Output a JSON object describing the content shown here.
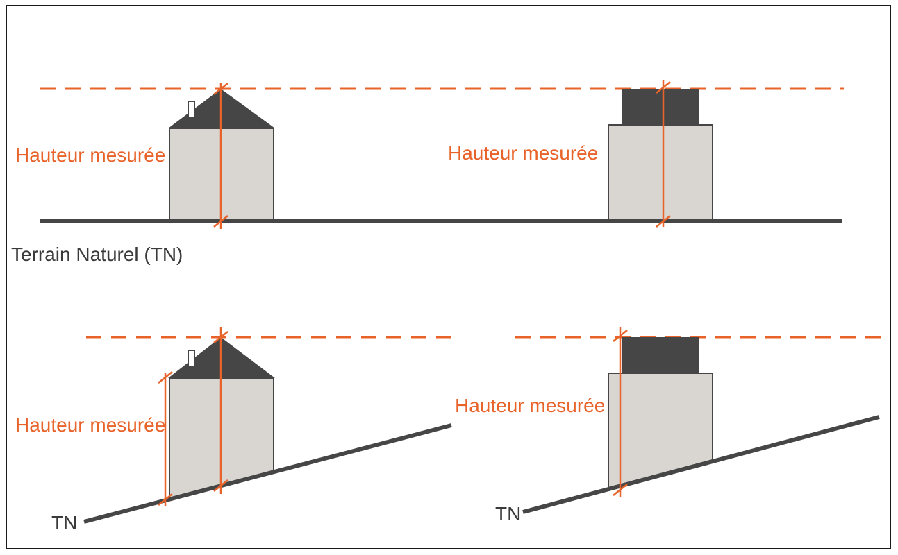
{
  "colors": {
    "accent": "#e8632a",
    "roof": "#464646",
    "wall": "#d9d6d2",
    "ground": "#464646",
    "frame": "#1a1a1a"
  },
  "labels": {
    "measured_height": "Hauteur mesurée",
    "natural_ground": "Terrain Naturel (TN)",
    "tn": "TN"
  },
  "panels": [
    {
      "terrain": "flat",
      "building": "pitched-roof-house"
    },
    {
      "terrain": "flat",
      "building": "flat-roof-block"
    },
    {
      "terrain": "slope",
      "building": "pitched-roof-house"
    },
    {
      "terrain": "slope",
      "building": "flat-roof-block"
    }
  ]
}
